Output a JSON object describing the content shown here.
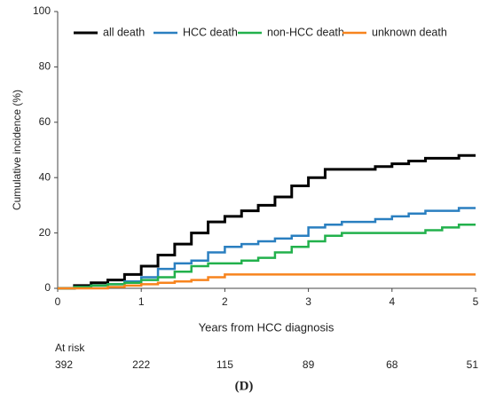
{
  "chart_data": {
    "type": "line",
    "drawstyle": "steps-post",
    "xlabel": "Years from HCC diagnosis",
    "ylabel": "Cumulative incidence (%)",
    "x": [
      0,
      0.2,
      0.4,
      0.6,
      0.8,
      1.0,
      1.2,
      1.4,
      1.6,
      1.8,
      2.0,
      2.2,
      2.4,
      2.6,
      2.8,
      3.0,
      3.2,
      3.4,
      3.6,
      3.8,
      4.0,
      4.2,
      4.4,
      4.6,
      4.8,
      5.0
    ],
    "series": [
      {
        "name": "all death",
        "color": "#000000",
        "values": [
          0,
          1,
          2,
          3,
          5,
          8,
          12,
          16,
          20,
          24,
          26,
          28,
          30,
          33,
          37,
          40,
          43,
          43,
          43,
          44,
          45,
          46,
          47,
          47,
          48,
          48
        ]
      },
      {
        "name": "HCC death",
        "color": "#2a7fc0",
        "values": [
          0,
          0.5,
          1,
          1.5,
          2.5,
          4,
          7,
          9,
          10,
          13,
          15,
          16,
          17,
          18,
          19,
          22,
          23,
          24,
          24,
          25,
          26,
          27,
          28,
          28,
          29,
          29
        ]
      },
      {
        "name": "non-HCC death",
        "color": "#22b14c",
        "values": [
          0,
          0.5,
          1,
          1.5,
          2,
          3,
          4,
          6,
          8,
          9,
          9,
          10,
          11,
          13,
          15,
          17,
          19,
          20,
          20,
          20,
          20,
          20,
          21,
          22,
          23,
          23
        ]
      },
      {
        "name": "unknown death",
        "color": "#f7841e",
        "values": [
          0,
          0,
          0,
          0.5,
          1,
          1.5,
          2,
          2.5,
          3,
          4,
          5,
          5,
          5,
          5,
          5,
          5,
          5,
          5,
          5,
          5,
          5,
          5,
          5,
          5,
          5,
          5
        ]
      }
    ],
    "xlim": [
      0,
      5
    ],
    "xticks": [
      0,
      1,
      2,
      3,
      4,
      5
    ],
    "ylim": [
      0,
      100
    ],
    "yticks": [
      0,
      20,
      40,
      60,
      80,
      100
    ],
    "grid": false,
    "legend": "top",
    "at_risk": {
      "label": "At risk",
      "values": [
        "392",
        "222",
        "115",
        "89",
        "68",
        "51"
      ]
    },
    "caption": "(D)"
  }
}
